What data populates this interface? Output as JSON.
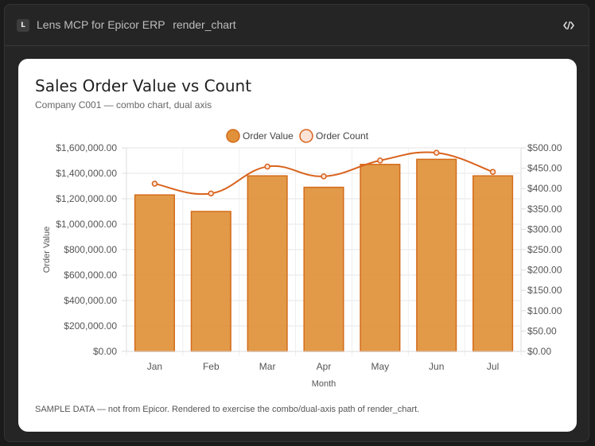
{
  "window": {
    "app_icon_letter": "L",
    "app_name": "Lens MCP for Epicor ERP",
    "tool_name": "render_chart",
    "code_icon": "code-icon"
  },
  "card": {
    "title": "Sales Order Value vs Count",
    "subtitle": "Company C001 — combo chart, dual axis",
    "footnote": "SAMPLE DATA — not from Epicor. Rendered to exercise the combo/dual-axis path of render_chart."
  },
  "chart_data": {
    "type": "bar",
    "combo": true,
    "categories": [
      "Jan",
      "Feb",
      "Mar",
      "Apr",
      "May",
      "Jun",
      "Jul"
    ],
    "xlabel": "Month",
    "ylabel": "Order Value",
    "y2label": "",
    "ylim": [
      0,
      1600000
    ],
    "y2lim": [
      0,
      500
    ],
    "yticks": [
      "$0.00",
      "$200,000.00",
      "$400,000.00",
      "$600,000.00",
      "$800,000.00",
      "$1,000,000.00",
      "$1,200,000.00",
      "$1,400,000.00",
      "$1,600,000.00"
    ],
    "y2ticks": [
      "$0.00",
      "$50.00",
      "$100.00",
      "$150.00",
      "$200.00",
      "$250.00",
      "$300.00",
      "$350.00",
      "$400.00",
      "$450.00",
      "$500.00"
    ],
    "grid": true,
    "legend_position": "top",
    "series": [
      {
        "name": "Order Value",
        "type": "bar",
        "axis": "left",
        "values": [
          1230000,
          1100000,
          1380000,
          1290000,
          1470000,
          1510000,
          1380000
        ],
        "color": "#e0913a",
        "border": "#d46b1a"
      },
      {
        "name": "Order Count",
        "type": "line",
        "axis": "right",
        "values": [
          412,
          388,
          454,
          430,
          469,
          488,
          441
        ],
        "color": "#d9621c",
        "fill": "#fbe3d6"
      }
    ]
  }
}
